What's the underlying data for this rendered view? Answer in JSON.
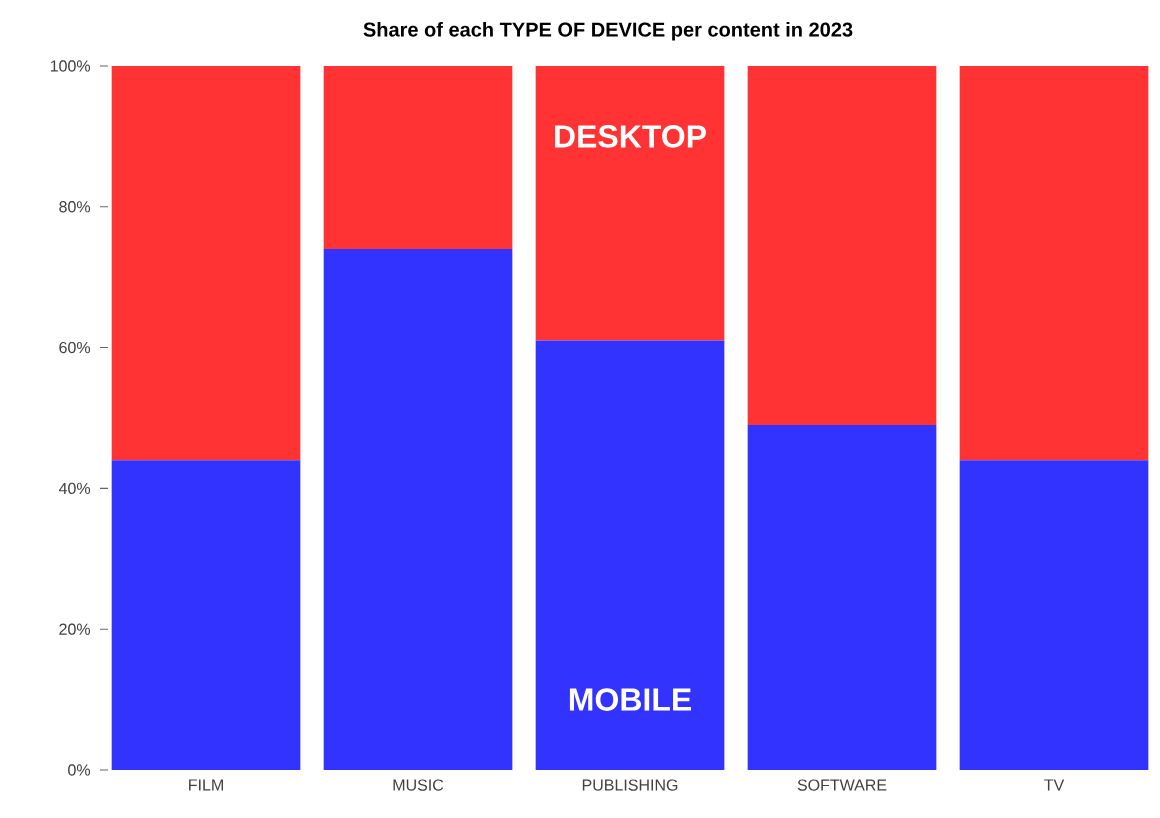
{
  "chart_data": {
    "type": "bar",
    "title": "Share of each TYPE OF DEVICE per content in 2023",
    "categories": [
      "FILM",
      "MUSIC",
      "PUBLISHING",
      "SOFTWARE",
      "TV"
    ],
    "stacked": true,
    "series": [
      {
        "name": "MOBILE",
        "color": "#3333ff",
        "values": [
          44,
          74,
          61,
          49,
          44
        ]
      },
      {
        "name": "DESKTOP",
        "color": "#ff3333",
        "values": [
          56,
          26,
          39,
          51,
          56
        ]
      }
    ],
    "ylim": [
      0,
      100
    ],
    "yticks": [
      {
        "value": 0,
        "label": "0%"
      },
      {
        "value": 20,
        "label": "20%"
      },
      {
        "value": 40,
        "label": "40%"
      },
      {
        "value": 60,
        "label": "60%"
      },
      {
        "value": 80,
        "label": "80%"
      },
      {
        "value": 100,
        "label": "100%"
      }
    ]
  }
}
